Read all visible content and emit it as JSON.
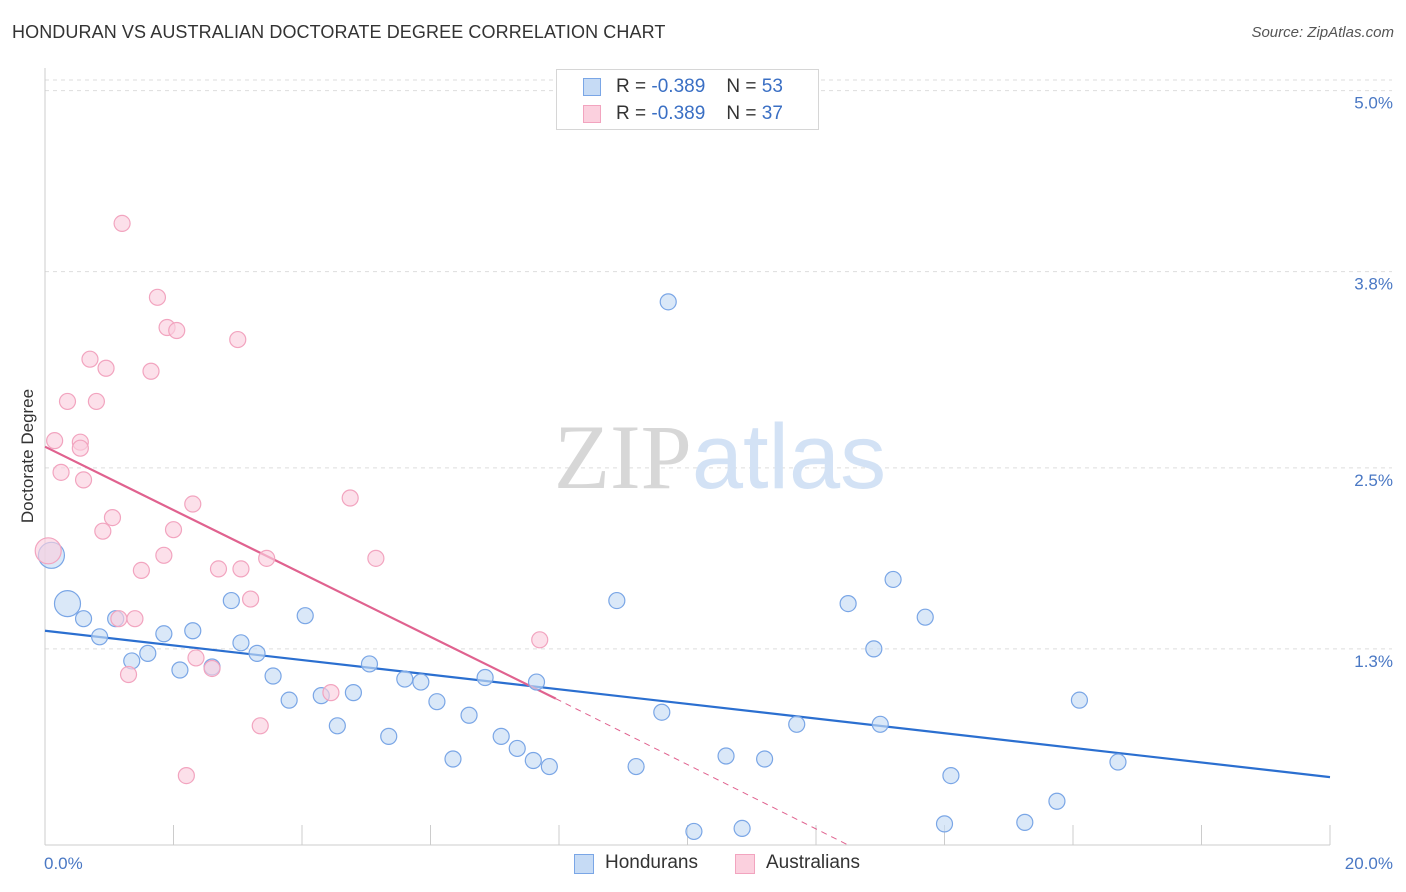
{
  "chart_data": {
    "type": "scatter",
    "title": "HONDURAN VS AUSTRALIAN DOCTORATE DEGREE CORRELATION CHART",
    "source": "Source: ZipAtlas.com",
    "xlabel": "",
    "ylabel": "Doctorate Degree",
    "xlim": [
      0,
      20
    ],
    "ylim": [
      0,
      5.15
    ],
    "x_tick_labels": [
      "0.0%",
      "20.0%"
    ],
    "y_ticks": [
      {
        "value": 1.3,
        "label": "1.3%"
      },
      {
        "value": 2.5,
        "label": "2.5%"
      },
      {
        "value": 3.8,
        "label": "3.8%"
      },
      {
        "value": 5.0,
        "label": "5.0%"
      }
    ],
    "watermark": {
      "part1": "ZIP",
      "part2": "atlas"
    },
    "legend": [
      {
        "r_label": "R =",
        "r_value": "-0.389",
        "n_label": "N =",
        "n_value": "53"
      },
      {
        "r_label": "R =",
        "r_value": "-0.389",
        "n_label": "N =",
        "n_value": "37"
      }
    ],
    "series": [
      {
        "name": "Hondurans",
        "color": "#7aa6e6",
        "fill": "#c6dbf5",
        "line_color": "#2b6fd0",
        "trend": {
          "x": [
            0,
            20
          ],
          "y": [
            1.42,
            0.45
          ]
        },
        "points": [
          {
            "x": 0.1,
            "y": 1.92,
            "big": true
          },
          {
            "x": 0.35,
            "y": 1.6,
            "big": true
          },
          {
            "x": 0.6,
            "y": 1.5
          },
          {
            "x": 0.85,
            "y": 1.38
          },
          {
            "x": 1.1,
            "y": 1.5
          },
          {
            "x": 1.35,
            "y": 1.22
          },
          {
            "x": 1.6,
            "y": 1.27
          },
          {
            "x": 1.85,
            "y": 1.4
          },
          {
            "x": 2.1,
            "y": 1.16
          },
          {
            "x": 2.3,
            "y": 1.42
          },
          {
            "x": 2.6,
            "y": 1.18
          },
          {
            "x": 2.9,
            "y": 1.62
          },
          {
            "x": 3.05,
            "y": 1.34
          },
          {
            "x": 3.3,
            "y": 1.27
          },
          {
            "x": 3.55,
            "y": 1.12
          },
          {
            "x": 3.8,
            "y": 0.96
          },
          {
            "x": 4.05,
            "y": 1.52
          },
          {
            "x": 4.3,
            "y": 0.99
          },
          {
            "x": 4.55,
            "y": 0.79
          },
          {
            "x": 4.8,
            "y": 1.01
          },
          {
            "x": 5.05,
            "y": 1.2
          },
          {
            "x": 5.35,
            "y": 0.72
          },
          {
            "x": 5.6,
            "y": 1.1
          },
          {
            "x": 5.85,
            "y": 1.08
          },
          {
            "x": 6.1,
            "y": 0.95
          },
          {
            "x": 6.35,
            "y": 0.57
          },
          {
            "x": 6.6,
            "y": 0.86
          },
          {
            "x": 6.85,
            "y": 1.11
          },
          {
            "x": 7.1,
            "y": 0.72
          },
          {
            "x": 7.35,
            "y": 0.64
          },
          {
            "x": 7.65,
            "y": 1.08
          },
          {
            "x": 7.6,
            "y": 0.56
          },
          {
            "x": 7.85,
            "y": 0.52
          },
          {
            "x": 8.9,
            "y": 1.62
          },
          {
            "x": 9.2,
            "y": 0.52
          },
          {
            "x": 9.6,
            "y": 0.88
          },
          {
            "x": 9.7,
            "y": 3.6
          },
          {
            "x": 10.1,
            "y": 0.09
          },
          {
            "x": 10.6,
            "y": 0.59
          },
          {
            "x": 10.85,
            "y": 0.11
          },
          {
            "x": 11.2,
            "y": 0.57
          },
          {
            "x": 11.7,
            "y": 0.8
          },
          {
            "x": 12.5,
            "y": 1.6
          },
          {
            "x": 12.9,
            "y": 1.3
          },
          {
            "x": 13.0,
            "y": 0.8
          },
          {
            "x": 13.2,
            "y": 1.76
          },
          {
            "x": 13.7,
            "y": 1.51
          },
          {
            "x": 14.0,
            "y": 0.14
          },
          {
            "x": 14.1,
            "y": 0.46
          },
          {
            "x": 15.25,
            "y": 0.15
          },
          {
            "x": 15.75,
            "y": 0.29
          },
          {
            "x": 16.1,
            "y": 0.96
          },
          {
            "x": 16.7,
            "y": 0.55
          }
        ]
      },
      {
        "name": "Australians",
        "color": "#f2a4bf",
        "fill": "#fbd0de",
        "line_color": "#e0628f",
        "trend": {
          "x": [
            0,
            7.95
          ],
          "y": [
            2.64,
            0.97
          ]
        },
        "trend_dashed": {
          "x": [
            7.95,
            12.5
          ],
          "y": [
            0.97,
            0.0
          ]
        },
        "points": [
          {
            "x": 0.05,
            "y": 1.95,
            "big": true
          },
          {
            "x": 0.15,
            "y": 2.68
          },
          {
            "x": 0.25,
            "y": 2.47
          },
          {
            "x": 0.35,
            "y": 2.94
          },
          {
            "x": 0.55,
            "y": 2.67
          },
          {
            "x": 0.55,
            "y": 2.63
          },
          {
            "x": 0.6,
            "y": 2.42
          },
          {
            "x": 0.7,
            "y": 3.22
          },
          {
            "x": 0.8,
            "y": 2.94
          },
          {
            "x": 0.9,
            "y": 2.08
          },
          {
            "x": 0.95,
            "y": 3.16
          },
          {
            "x": 1.05,
            "y": 2.17
          },
          {
            "x": 1.15,
            "y": 1.5
          },
          {
            "x": 1.2,
            "y": 4.12
          },
          {
            "x": 1.3,
            "y": 1.13
          },
          {
            "x": 1.4,
            "y": 1.5
          },
          {
            "x": 1.5,
            "y": 1.82
          },
          {
            "x": 1.65,
            "y": 3.14
          },
          {
            "x": 1.75,
            "y": 3.63
          },
          {
            "x": 1.85,
            "y": 1.92
          },
          {
            "x": 1.9,
            "y": 3.43
          },
          {
            "x": 2.0,
            "y": 2.09
          },
          {
            "x": 2.05,
            "y": 3.41
          },
          {
            "x": 2.2,
            "y": 0.46
          },
          {
            "x": 2.3,
            "y": 2.26
          },
          {
            "x": 2.35,
            "y": 1.24
          },
          {
            "x": 2.6,
            "y": 1.17
          },
          {
            "x": 2.7,
            "y": 1.83
          },
          {
            "x": 3.05,
            "y": 1.83
          },
          {
            "x": 3.0,
            "y": 3.35
          },
          {
            "x": 3.2,
            "y": 1.63
          },
          {
            "x": 3.35,
            "y": 0.79
          },
          {
            "x": 3.45,
            "y": 1.9
          },
          {
            "x": 4.45,
            "y": 1.01
          },
          {
            "x": 4.75,
            "y": 2.3
          },
          {
            "x": 5.15,
            "y": 1.9
          },
          {
            "x": 7.7,
            "y": 1.36
          }
        ]
      }
    ]
  }
}
